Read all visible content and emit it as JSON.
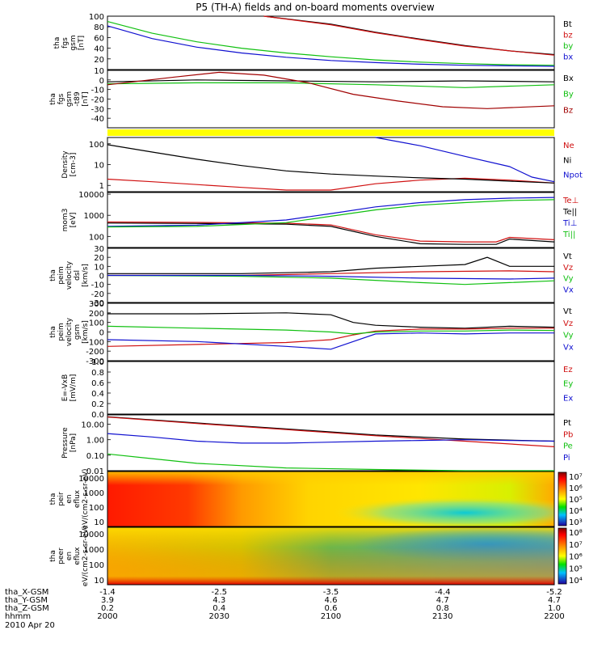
{
  "title": "P5 (TH-A) fields and on-board moments overview",
  "date": "2010 Apr 20",
  "orbit": {
    "rows": [
      {
        "label": "tha_X-GSM",
        "values": [
          "-1.4",
          "-2.5",
          "-3.5",
          "-4.4",
          "-5.2"
        ]
      },
      {
        "label": "tha_Y-GSM",
        "values": [
          "3.9",
          "4.3",
          "4.6",
          "4.7",
          "4.7"
        ]
      },
      {
        "label": "tha_Z-GSM",
        "values": [
          "0.2",
          "0.4",
          "0.6",
          "0.8",
          "1.0"
        ]
      },
      {
        "label": "hhmm",
        "values": [
          "2000",
          "2030",
          "2100",
          "2130",
          "2200"
        ]
      }
    ]
  },
  "colors": {
    "black": "#000000",
    "red": "#d01010",
    "green": "#10c010",
    "blue": "#1010d0",
    "darkred": "#a00000",
    "yellow": "#ffff00"
  },
  "chart_data": [
    {
      "type": "line",
      "ylabel": "tha fgs gsm [nT]",
      "yticks": [
        "100",
        "80",
        "60",
        "40",
        "20"
      ],
      "ylim": [
        0,
        100
      ],
      "x": [
        "2000",
        "2030",
        "2100",
        "2130",
        "2200"
      ],
      "series": [
        {
          "name": "Bt",
          "color": "#000000",
          "x": [
            0.35,
            0.5,
            0.6,
            0.7,
            0.8,
            0.9,
            1.0
          ],
          "y": [
            100,
            85,
            70,
            57,
            45,
            35,
            28
          ]
        },
        {
          "name": "bz",
          "color": "#d01010",
          "x": [
            0.35,
            0.5,
            0.6,
            0.7,
            0.8,
            0.9,
            1.0
          ],
          "y": [
            100,
            84,
            69,
            56,
            44,
            35,
            27
          ]
        },
        {
          "name": "by",
          "color": "#10c010",
          "x": [
            0,
            0.1,
            0.2,
            0.3,
            0.4,
            0.5,
            0.6,
            0.7,
            0.8,
            0.9,
            1.0
          ],
          "y": [
            90,
            68,
            52,
            40,
            31,
            24,
            18,
            14,
            11,
            9,
            8
          ]
        },
        {
          "name": "bx",
          "color": "#1010d0",
          "x": [
            0,
            0.1,
            0.2,
            0.3,
            0.4,
            0.5,
            0.6,
            0.7,
            0.8,
            0.9,
            1.0
          ],
          "y": [
            82,
            58,
            42,
            31,
            23,
            17,
            13,
            10,
            8,
            7,
            6
          ]
        }
      ]
    },
    {
      "type": "line",
      "ylabel": "tha fgs gsm -t89 [nT]",
      "yticks": [
        "10",
        "0",
        "-10",
        "-20",
        "-30",
        "-40"
      ],
      "ylim": [
        -50,
        10
      ],
      "x": [
        "2000",
        "2030",
        "2100",
        "2130",
        "2200"
      ],
      "series": [
        {
          "name": "Bx",
          "color": "#000000",
          "x": [
            0,
            0.2,
            0.4,
            0.6,
            0.8,
            1.0
          ],
          "y": [
            -2,
            0,
            -1,
            -2,
            -1,
            -2
          ]
        },
        {
          "name": "By",
          "color": "#10c010",
          "x": [
            0,
            0.2,
            0.4,
            0.6,
            0.8,
            1.0
          ],
          "y": [
            -4,
            -3,
            -3,
            -5,
            -8,
            -5
          ]
        },
        {
          "name": "Bz",
          "color": "#a00000",
          "x": [
            0,
            0.15,
            0.25,
            0.35,
            0.45,
            0.55,
            0.65,
            0.75,
            0.85,
            1.0
          ],
          "y": [
            -5,
            3,
            8,
            5,
            -3,
            -15,
            -22,
            -28,
            -30,
            -27
          ]
        }
      ]
    },
    {
      "type": "bar",
      "label": "flag",
      "color": "#ffff00"
    },
    {
      "type": "line",
      "ylabel": "Density [cm-3]",
      "scale": "log",
      "yticks": [
        "100",
        "10",
        "1"
      ],
      "ylim": [
        0.5,
        200
      ],
      "x": [
        "2000",
        "2030",
        "2100",
        "2130",
        "2200"
      ],
      "series": [
        {
          "name": "Ne",
          "color": "#d01010",
          "x": [
            0,
            0.1,
            0.2,
            0.3,
            0.4,
            0.5,
            0.6,
            0.7,
            0.8,
            0.9,
            1.0
          ],
          "y": [
            2,
            1.5,
            1.1,
            0.8,
            0.6,
            0.6,
            1.2,
            1.8,
            2.2,
            1.8,
            1.3
          ]
        },
        {
          "name": "Ni",
          "color": "#000000",
          "x": [
            0,
            0.1,
            0.2,
            0.3,
            0.4,
            0.5,
            0.6,
            0.7,
            0.8,
            0.9,
            1.0
          ],
          "y": [
            90,
            40,
            18,
            9,
            5,
            3.5,
            2.8,
            2.3,
            2,
            1.6,
            1.3
          ]
        },
        {
          "name": "Npot",
          "color": "#1010d0",
          "x": [
            0.6,
            0.7,
            0.8,
            0.9,
            0.95,
            1.0
          ],
          "y": [
            200,
            80,
            25,
            8,
            2.5,
            1.5
          ]
        }
      ]
    },
    {
      "type": "line",
      "ylabel": "mom3 [eV]",
      "scale": "log",
      "yticks": [
        "10000",
        "1000",
        "100"
      ],
      "ylim": [
        30,
        12000
      ],
      "x": [
        "2000",
        "2030",
        "2100",
        "2130",
        "2200"
      ],
      "series": [
        {
          "name": "Te⊥",
          "color": "#d01010",
          "x": [
            0,
            0.2,
            0.4,
            0.5,
            0.6,
            0.7,
            0.8,
            0.87,
            0.9,
            1.0
          ],
          "y": [
            480,
            460,
            420,
            350,
            120,
            60,
            55,
            55,
            90,
            70
          ]
        },
        {
          "name": "Te||",
          "color": "#000000",
          "x": [
            0,
            0.2,
            0.4,
            0.5,
            0.6,
            0.7,
            0.8,
            0.87,
            0.9,
            1.0
          ],
          "y": [
            430,
            410,
            380,
            300,
            100,
            45,
            42,
            42,
            75,
            55
          ]
        },
        {
          "name": "Ti⊥",
          "color": "#1010d0",
          "x": [
            0,
            0.2,
            0.4,
            0.5,
            0.6,
            0.7,
            0.8,
            0.9,
            1.0
          ],
          "y": [
            300,
            340,
            600,
            1200,
            2500,
            4000,
            5500,
            6500,
            7000
          ]
        },
        {
          "name": "Ti||",
          "color": "#10c010",
          "x": [
            0,
            0.2,
            0.4,
            0.5,
            0.6,
            0.7,
            0.8,
            0.9,
            1.0
          ],
          "y": [
            280,
            300,
            450,
            900,
            1800,
            3000,
            4000,
            5000,
            5500
          ]
        }
      ]
    },
    {
      "type": "line",
      "ylabel": "tha peim velocity dsl [km/s]",
      "yticks": [
        "30",
        "20",
        "10",
        "0",
        "-10",
        "-20",
        "-30"
      ],
      "ylim": [
        -30,
        30
      ],
      "x": [
        "2000",
        "2030",
        "2100",
        "2130",
        "2200"
      ],
      "series": [
        {
          "name": "Vt",
          "color": "#000000",
          "x": [
            0,
            0.3,
            0.5,
            0.6,
            0.7,
            0.8,
            0.85,
            0.9,
            1.0
          ],
          "y": [
            2,
            2,
            4,
            8,
            10,
            12,
            20,
            10,
            10
          ]
        },
        {
          "name": "Vz",
          "color": "#d01010",
          "x": [
            0,
            0.3,
            0.5,
            0.7,
            0.9,
            1.0
          ],
          "y": [
            0,
            0,
            2,
            4,
            5,
            4
          ]
        },
        {
          "name": "Vy",
          "color": "#10c010",
          "x": [
            0,
            0.3,
            0.5,
            0.7,
            0.8,
            0.9,
            1.0
          ],
          "y": [
            0,
            -1,
            -3,
            -8,
            -10,
            -8,
            -6
          ]
        },
        {
          "name": "Vx",
          "color": "#1010d0",
          "x": [
            0,
            0.3,
            0.5,
            0.7,
            0.9,
            1.0
          ],
          "y": [
            0,
            0,
            -1,
            -3,
            -4,
            -3
          ]
        }
      ]
    },
    {
      "type": "line",
      "ylabel": "tha peim velocity gsm [km/s]",
      "yticks": [
        "300",
        "200",
        "100",
        "0",
        "-100",
        "-200",
        "-300"
      ],
      "ylim": [
        -300,
        300
      ],
      "x": [
        "2000",
        "2030",
        "2100",
        "2130",
        "2200"
      ],
      "series": [
        {
          "name": "Vt",
          "color": "#000000",
          "x": [
            0,
            0.2,
            0.4,
            0.5,
            0.55,
            0.6,
            0.7,
            0.8,
            0.9,
            1.0
          ],
          "y": [
            190,
            190,
            200,
            180,
            100,
            70,
            50,
            40,
            60,
            50
          ]
        },
        {
          "name": "Vz",
          "color": "#d01010",
          "x": [
            0,
            0.2,
            0.4,
            0.5,
            0.55,
            0.6,
            0.7,
            0.8,
            0.9,
            1.0
          ],
          "y": [
            -150,
            -130,
            -110,
            -80,
            -30,
            10,
            30,
            30,
            40,
            40
          ]
        },
        {
          "name": "Vy",
          "color": "#10c010",
          "x": [
            0,
            0.2,
            0.4,
            0.5,
            0.55,
            0.6,
            0.7,
            0.8,
            0.9,
            1.0
          ],
          "y": [
            60,
            40,
            20,
            0,
            -20,
            0,
            10,
            10,
            20,
            15
          ]
        },
        {
          "name": "Vx",
          "color": "#1010d0",
          "x": [
            0,
            0.2,
            0.4,
            0.5,
            0.55,
            0.6,
            0.7,
            0.8,
            0.9,
            1.0
          ],
          "y": [
            -80,
            -100,
            -150,
            -180,
            -100,
            -20,
            -10,
            -20,
            -10,
            -10
          ]
        }
      ]
    },
    {
      "type": "line",
      "ylabel": "E=-VxB [mV/m]",
      "yticks": [
        "1.0",
        "0.8",
        "0.6",
        "0.4",
        "0.2",
        "0.0"
      ],
      "ylim": [
        0,
        1
      ],
      "x": [
        "2000",
        "2030",
        "2100",
        "2130",
        "2200"
      ],
      "series": [
        {
          "name": "Ez",
          "color": "#d01010",
          "x": [],
          "y": []
        },
        {
          "name": "Ey",
          "color": "#10c010",
          "x": [],
          "y": []
        },
        {
          "name": "Ex",
          "color": "#1010d0",
          "x": [],
          "y": []
        }
      ]
    },
    {
      "type": "line",
      "ylabel": "Pressure [nPa]",
      "scale": "log",
      "yticks": [
        "10.00",
        "1.00",
        "0.10",
        "0.01"
      ],
      "ylim": [
        0.01,
        40
      ],
      "x": [
        "2000",
        "2030",
        "2100",
        "2130",
        "2200"
      ],
      "series": [
        {
          "name": "Pt",
          "color": "#000000",
          "x": [
            0,
            0.2,
            0.4,
            0.6,
            0.8,
            1.0
          ],
          "y": [
            30,
            12,
            5,
            2,
            1.1,
            0.8
          ]
        },
        {
          "name": "Pb",
          "color": "#d01010",
          "x": [
            0,
            0.2,
            0.4,
            0.6,
            0.8,
            1.0
          ],
          "y": [
            29,
            11,
            4.5,
            1.8,
            0.8,
            0.35
          ]
        },
        {
          "name": "Pe",
          "color": "#10c010",
          "x": [
            0,
            0.1,
            0.2,
            0.4,
            0.6,
            0.8,
            1.0
          ],
          "y": [
            0.12,
            0.06,
            0.03,
            0.015,
            0.012,
            0.01,
            0.01
          ]
        },
        {
          "name": "Pi",
          "color": "#1010d0",
          "x": [
            0,
            0.1,
            0.2,
            0.3,
            0.4,
            0.5,
            0.6,
            0.7,
            0.8,
            0.9,
            1.0
          ],
          "y": [
            2.5,
            1.5,
            0.8,
            0.6,
            0.6,
            0.7,
            0.8,
            0.9,
            1.0,
            0.9,
            0.8
          ]
        }
      ]
    },
    {
      "type": "heatmap",
      "ylabel": "tha peir en eflux eV/(cm2-s-sr-eV)",
      "yticks": [
        "10000",
        "1000",
        "100",
        "10"
      ],
      "colorbar": {
        "ticks": [
          "10⁷",
          "10⁶",
          "10⁵",
          "10⁴",
          "10³"
        ]
      }
    },
    {
      "type": "heatmap",
      "ylabel": "tha peer en eflux eV/(cm2-s-sr-eV)",
      "yticks": [
        "10000",
        "1000",
        "100",
        "10"
      ],
      "colorbar": {
        "ticks": [
          "10⁸",
          "10⁷",
          "10⁶",
          "10⁵",
          "10⁴"
        ]
      }
    }
  ]
}
